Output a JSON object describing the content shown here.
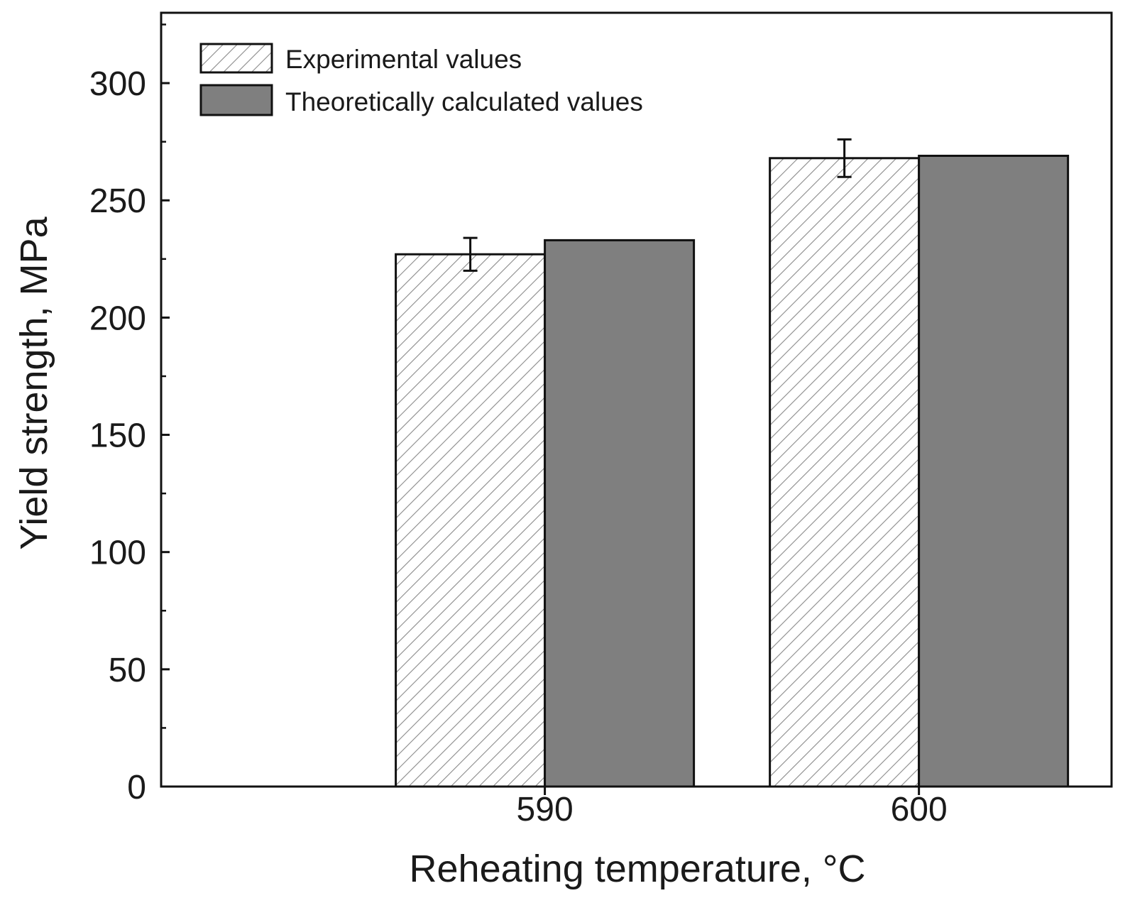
{
  "chart_data": {
    "type": "bar",
    "title": "",
    "xlabel": "Reheating temperature, °C",
    "ylabel": "Yield strength, MPa",
    "categories": [
      "590",
      "600"
    ],
    "ylim": [
      0,
      330
    ],
    "yticks": [
      0,
      50,
      100,
      150,
      200,
      250,
      300
    ],
    "ytick_labels": [
      "0",
      "50",
      "100",
      "150",
      "200",
      "250",
      "300"
    ],
    "grid": false,
    "legend_position": "top-left",
    "series": [
      {
        "name": "Experimental values",
        "pattern": "hatched",
        "color": "#ffffff",
        "values": [
          227,
          268
        ],
        "errors": [
          7,
          8
        ]
      },
      {
        "name": "Theoretically calculated values",
        "pattern": "solid",
        "color": "#7f7f7f",
        "values": [
          233,
          269
        ]
      }
    ]
  }
}
